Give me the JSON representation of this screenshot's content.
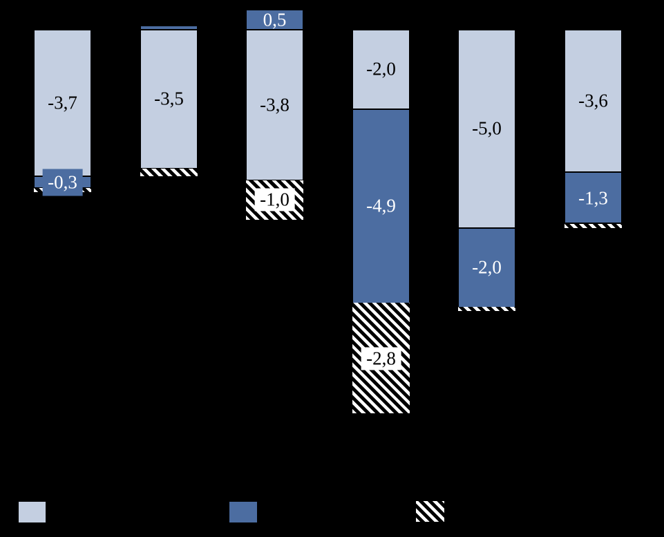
{
  "page": {
    "background": "#000000"
  },
  "colors": {
    "background": "#000000",
    "series_light": "#c4cfe1",
    "series_dark": "#4c6da1",
    "hatch_stripe": "#ffffff",
    "segment_border": "#000000",
    "label_on_light": "#000000",
    "label_on_dark": "#ffffff",
    "label_box_white": "#ffffff"
  },
  "legend": {
    "position": "bottom",
    "items": [
      {
        "name": "series-light",
        "label": ""
      },
      {
        "name": "series-dark",
        "label": ""
      },
      {
        "name": "series-hatched",
        "label": ""
      }
    ]
  },
  "chart_data": {
    "type": "bar",
    "stacked": true,
    "orientation": "vertical",
    "title": "",
    "xlabel": "",
    "ylabel": "",
    "categories": [
      "",
      "",
      "",
      "",
      "",
      ""
    ],
    "decimal_separator": ",",
    "grid": false,
    "axis_labels_visible": false,
    "ylim": [
      -9.8,
      0.6
    ],
    "series_styles": [
      "light",
      "dark",
      "hatch"
    ],
    "bars": [
      {
        "segments": [
          {
            "value": -3.7,
            "label": "-3,7",
            "series": "light"
          },
          {
            "value": -0.3,
            "label": "-0,3",
            "series": "dark",
            "label_style": "dark-box"
          },
          {
            "value": -0.1,
            "label": "",
            "series": "hatch"
          }
        ]
      },
      {
        "segments": [
          {
            "value": 0.1,
            "label": "",
            "series": "dark"
          },
          {
            "value": -3.5,
            "label": "-3,5",
            "series": "light"
          },
          {
            "value": -0.2,
            "label": "",
            "series": "hatch"
          }
        ]
      },
      {
        "segments": [
          {
            "value": 0.5,
            "label": "0,5",
            "series": "dark"
          },
          {
            "value": -3.8,
            "label": "-3,8",
            "series": "light"
          },
          {
            "value": -1.0,
            "label": "-1,0",
            "series": "hatch",
            "label_style": "white-box"
          }
        ]
      },
      {
        "segments": [
          {
            "value": -2.0,
            "label": "-2,0",
            "series": "light"
          },
          {
            "value": -4.9,
            "label": "-4,9",
            "series": "dark"
          },
          {
            "value": -2.8,
            "label": "-2,8",
            "series": "hatch",
            "label_style": "white-box"
          }
        ]
      },
      {
        "segments": [
          {
            "value": -5.0,
            "label": "-5,0",
            "series": "light"
          },
          {
            "value": -2.0,
            "label": "-2,0",
            "series": "dark"
          },
          {
            "value": -0.1,
            "label": "",
            "series": "hatch"
          }
        ]
      },
      {
        "segments": [
          {
            "value": -3.6,
            "label": "-3,6",
            "series": "light"
          },
          {
            "value": -1.3,
            "label": "-1,3",
            "series": "dark"
          },
          {
            "value": -0.1,
            "label": "",
            "series": "hatch"
          }
        ]
      }
    ]
  }
}
